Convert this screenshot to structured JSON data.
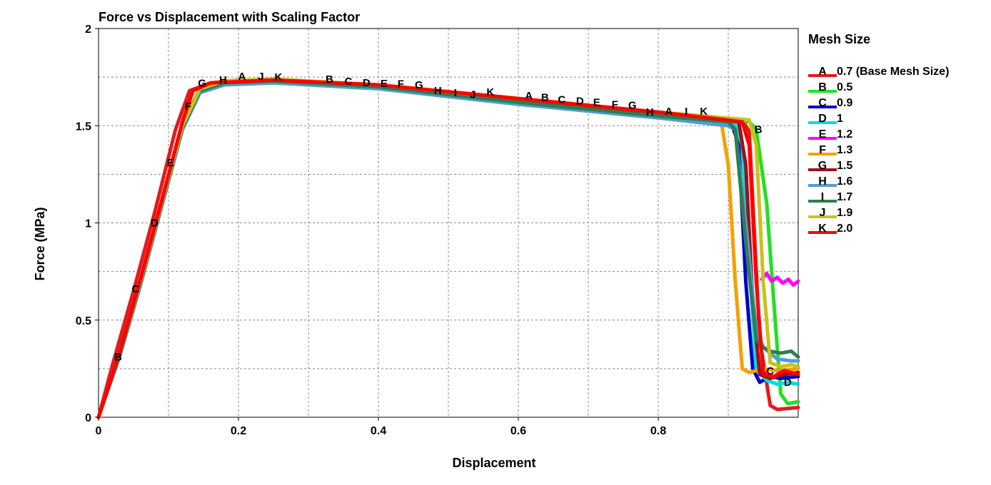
{
  "chart_data": {
    "type": "line",
    "title": "Force vs Displacement with Scaling Factor",
    "xlabel": "Displacement",
    "ylabel": "Force (MPa)",
    "xlim": [
      0,
      1.0
    ],
    "ylim": [
      0,
      2
    ],
    "x_ticks": [
      "0",
      "0.2",
      "0.4",
      "0.6",
      "0.8"
    ],
    "y_ticks": [
      "0",
      "0.5",
      "1",
      "1.5",
      "2"
    ],
    "grid": true,
    "legend": {
      "title": "Mesh Size",
      "position": "right"
    },
    "series": [
      {
        "marker": "A",
        "name": "0.7 (Base Mesh Size)",
        "color": "#e31a1c",
        "points": [
          [
            0,
            0
          ],
          [
            0.02,
            0.27
          ],
          [
            0.05,
            0.65
          ],
          [
            0.08,
            1.05
          ],
          [
            0.11,
            1.48
          ],
          [
            0.13,
            1.68
          ],
          [
            0.16,
            1.72
          ],
          [
            0.2,
            1.735
          ],
          [
            0.3,
            1.73
          ],
          [
            0.4,
            1.7
          ],
          [
            0.6,
            1.63
          ],
          [
            0.8,
            1.57
          ],
          [
            0.92,
            1.53
          ],
          [
            0.93,
            1.47
          ],
          [
            0.945,
            0.4
          ],
          [
            0.96,
            0.06
          ],
          [
            0.97,
            0.04
          ],
          [
            1.0,
            0.05
          ]
        ],
        "labels": [
          [
            0.205,
            1.755
          ],
          [
            0.615,
            1.655
          ],
          [
            0.815,
            1.575
          ]
        ]
      },
      {
        "marker": "B",
        "name": "0.5",
        "color": "#22e022",
        "points": [
          [
            0,
            0
          ],
          [
            0.03,
            0.33
          ],
          [
            0.06,
            0.7
          ],
          [
            0.09,
            1.1
          ],
          [
            0.12,
            1.5
          ],
          [
            0.145,
            1.68
          ],
          [
            0.18,
            1.72
          ],
          [
            0.25,
            1.73
          ],
          [
            0.4,
            1.7
          ],
          [
            0.6,
            1.63
          ],
          [
            0.8,
            1.56
          ],
          [
            0.93,
            1.52
          ],
          [
            0.94,
            1.48
          ],
          [
            0.955,
            1.1
          ],
          [
            0.965,
            0.6
          ],
          [
            0.975,
            0.12
          ],
          [
            0.985,
            0.07
          ],
          [
            1.0,
            0.08
          ]
        ],
        "labels": [
          [
            0.028,
            0.31
          ],
          [
            0.33,
            1.74
          ],
          [
            0.638,
            1.645
          ],
          [
            0.943,
            1.48
          ]
        ]
      },
      {
        "marker": "C",
        "name": "0.9",
        "color": "#0000cc",
        "points": [
          [
            0,
            0
          ],
          [
            0.03,
            0.32
          ],
          [
            0.06,
            0.69
          ],
          [
            0.09,
            1.09
          ],
          [
            0.12,
            1.49
          ],
          [
            0.145,
            1.68
          ],
          [
            0.18,
            1.72
          ],
          [
            0.25,
            1.73
          ],
          [
            0.4,
            1.7
          ],
          [
            0.6,
            1.62
          ],
          [
            0.8,
            1.55
          ],
          [
            0.905,
            1.51
          ],
          [
            0.915,
            1.4
          ],
          [
            0.925,
            0.7
          ],
          [
            0.935,
            0.25
          ],
          [
            0.945,
            0.18
          ],
          [
            0.96,
            0.21
          ],
          [
            0.975,
            0.2
          ],
          [
            1.0,
            0.21
          ]
        ],
        "labels": [
          [
            0.053,
            0.66
          ],
          [
            0.357,
            1.728
          ],
          [
            0.662,
            1.635
          ],
          [
            0.96,
            0.238
          ]
        ]
      },
      {
        "marker": "D",
        "name": "1",
        "color": "#00dddd",
        "points": [
          [
            0,
            0
          ],
          [
            0.03,
            0.32
          ],
          [
            0.06,
            0.69
          ],
          [
            0.09,
            1.09
          ],
          [
            0.12,
            1.49
          ],
          [
            0.145,
            1.68
          ],
          [
            0.18,
            1.72
          ],
          [
            0.25,
            1.73
          ],
          [
            0.4,
            1.7
          ],
          [
            0.6,
            1.62
          ],
          [
            0.8,
            1.55
          ],
          [
            0.91,
            1.51
          ],
          [
            0.92,
            1.4
          ],
          [
            0.93,
            0.8
          ],
          [
            0.94,
            0.25
          ],
          [
            0.955,
            0.19
          ],
          [
            0.97,
            0.17
          ],
          [
            0.985,
            0.18
          ],
          [
            1.0,
            0.17
          ]
        ],
        "labels": [
          [
            0.08,
            1.0
          ],
          [
            0.383,
            1.722
          ],
          [
            0.688,
            1.628
          ],
          [
            0.985,
            0.18
          ]
        ]
      },
      {
        "marker": "E",
        "name": "1.2",
        "color": "#ff00ff",
        "points": [
          [
            0.948,
            0.71
          ],
          [
            0.955,
            0.74
          ],
          [
            0.962,
            0.7
          ],
          [
            0.97,
            0.72
          ],
          [
            0.978,
            0.69
          ],
          [
            0.986,
            0.71
          ],
          [
            0.993,
            0.68
          ],
          [
            1.0,
            0.7
          ]
        ],
        "labels": [
          [
            0.103,
            1.31
          ],
          [
            0.408,
            1.718
          ],
          [
            0.712,
            1.62
          ]
        ]
      },
      {
        "marker": "F",
        "name": "1.3",
        "color": "#f5a000",
        "points": [
          [
            0,
            0
          ],
          [
            0.03,
            0.33
          ],
          [
            0.06,
            0.7
          ],
          [
            0.09,
            1.1
          ],
          [
            0.12,
            1.5
          ],
          [
            0.145,
            1.69
          ],
          [
            0.18,
            1.73
          ],
          [
            0.25,
            1.74
          ],
          [
            0.4,
            1.7
          ],
          [
            0.6,
            1.63
          ],
          [
            0.8,
            1.56
          ],
          [
            0.89,
            1.52
          ],
          [
            0.9,
            1.3
          ],
          [
            0.91,
            0.7
          ],
          [
            0.92,
            0.25
          ],
          [
            0.93,
            0.23
          ],
          [
            0.95,
            0.25
          ],
          [
            0.97,
            0.24
          ],
          [
            1.0,
            0.25
          ]
        ],
        "labels": [
          [
            0.128,
            1.6
          ],
          [
            0.432,
            1.715
          ],
          [
            0.738,
            1.61
          ]
        ]
      },
      {
        "marker": "G",
        "name": "1.5",
        "color": "#a01018",
        "points": [
          [
            0,
            0
          ],
          [
            0.03,
            0.33
          ],
          [
            0.06,
            0.7
          ],
          [
            0.09,
            1.1
          ],
          [
            0.12,
            1.51
          ],
          [
            0.145,
            1.69
          ],
          [
            0.18,
            1.73
          ],
          [
            0.25,
            1.735
          ],
          [
            0.4,
            1.7
          ],
          [
            0.6,
            1.63
          ],
          [
            0.8,
            1.56
          ],
          [
            0.915,
            1.52
          ],
          [
            0.925,
            1.3
          ],
          [
            0.935,
            0.6
          ],
          [
            0.945,
            0.22
          ],
          [
            0.96,
            0.2
          ],
          [
            0.98,
            0.22
          ],
          [
            1.0,
            0.23
          ]
        ],
        "labels": [
          [
            0.148,
            1.72
          ],
          [
            0.458,
            1.71
          ],
          [
            0.763,
            1.605
          ]
        ]
      },
      {
        "marker": "H",
        "name": "1.6",
        "color": "#4e9ed6",
        "points": [
          [
            0,
            0
          ],
          [
            0.03,
            0.31
          ],
          [
            0.06,
            0.68
          ],
          [
            0.09,
            1.08
          ],
          [
            0.12,
            1.48
          ],
          [
            0.145,
            1.67
          ],
          [
            0.18,
            1.71
          ],
          [
            0.25,
            1.72
          ],
          [
            0.4,
            1.69
          ],
          [
            0.6,
            1.61
          ],
          [
            0.8,
            1.54
          ],
          [
            0.9,
            1.5
          ],
          [
            0.91,
            1.48
          ],
          [
            0.925,
            1.0
          ],
          [
            0.94,
            0.45
          ],
          [
            0.95,
            0.36
          ],
          [
            0.97,
            0.3
          ],
          [
            0.99,
            0.29
          ],
          [
            1.0,
            0.29
          ]
        ],
        "labels": [
          [
            0.178,
            1.735
          ],
          [
            0.485,
            1.68
          ],
          [
            0.788,
            1.57
          ]
        ]
      },
      {
        "marker": "I",
        "name": "1.7",
        "color": "#2e7d4e",
        "points": [
          [
            0,
            0
          ],
          [
            0.03,
            0.32
          ],
          [
            0.06,
            0.69
          ],
          [
            0.09,
            1.09
          ],
          [
            0.12,
            1.49
          ],
          [
            0.145,
            1.68
          ],
          [
            0.18,
            1.72
          ],
          [
            0.25,
            1.73
          ],
          [
            0.4,
            1.7
          ],
          [
            0.6,
            1.62
          ],
          [
            0.8,
            1.55
          ],
          [
            0.9,
            1.52
          ],
          [
            0.91,
            1.48
          ],
          [
            0.925,
            0.9
          ],
          [
            0.94,
            0.4
          ],
          [
            0.95,
            0.36
          ],
          [
            0.96,
            0.34
          ],
          [
            0.975,
            0.33
          ],
          [
            0.99,
            0.34
          ],
          [
            1.0,
            0.31
          ]
        ],
        "labels": [
          [
            0.51,
            1.67
          ],
          [
            0.84,
            1.575
          ]
        ]
      },
      {
        "marker": "J",
        "name": "1.9",
        "color": "#c9c21a",
        "points": [
          [
            0,
            0
          ],
          [
            0.03,
            0.33
          ],
          [
            0.06,
            0.7
          ],
          [
            0.09,
            1.1
          ],
          [
            0.12,
            1.5
          ],
          [
            0.145,
            1.69
          ],
          [
            0.18,
            1.73
          ],
          [
            0.25,
            1.74
          ],
          [
            0.4,
            1.71
          ],
          [
            0.6,
            1.64
          ],
          [
            0.8,
            1.57
          ],
          [
            0.93,
            1.53
          ],
          [
            0.94,
            1.4
          ],
          [
            0.95,
            0.7
          ],
          [
            0.96,
            0.28
          ],
          [
            0.975,
            0.26
          ],
          [
            0.99,
            0.27
          ],
          [
            1.0,
            0.26
          ]
        ],
        "labels": [
          [
            0.232,
            1.755
          ],
          [
            0.535,
            1.66
          ]
        ]
      },
      {
        "marker": "K",
        "name": "2.0",
        "color": "#ff0000",
        "points": [
          [
            0,
            0
          ],
          [
            0.03,
            0.33
          ],
          [
            0.06,
            0.71
          ],
          [
            0.09,
            1.11
          ],
          [
            0.12,
            1.52
          ],
          [
            0.135,
            1.68
          ],
          [
            0.16,
            1.72
          ],
          [
            0.25,
            1.735
          ],
          [
            0.4,
            1.71
          ],
          [
            0.6,
            1.64
          ],
          [
            0.8,
            1.57
          ],
          [
            0.92,
            1.52
          ],
          [
            0.93,
            1.4
          ],
          [
            0.94,
            0.7
          ],
          [
            0.95,
            0.22
          ],
          [
            0.965,
            0.21
          ],
          [
            0.98,
            0.24
          ],
          [
            1.0,
            0.22
          ]
        ],
        "labels": [
          [
            0.257,
            1.75
          ],
          [
            0.56,
            1.673
          ],
          [
            0.865,
            1.575
          ]
        ]
      }
    ]
  }
}
